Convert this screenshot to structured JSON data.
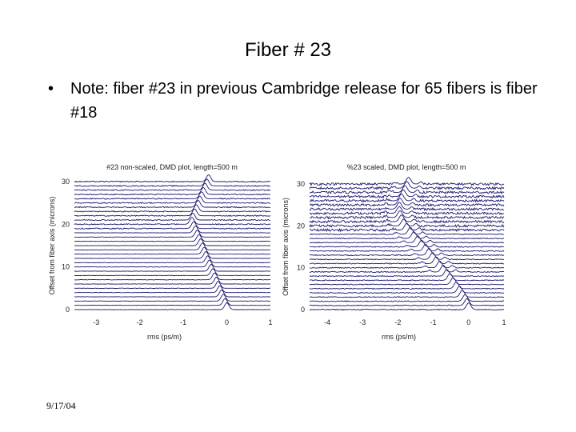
{
  "slide": {
    "title": "Fiber # 23",
    "bullet_symbol": "•",
    "bullet_text": "Note: fiber #23 in previous Cambridge release for 65 fibers is fiber #18",
    "footer_date": "9/17/04"
  },
  "chart_data": [
    {
      "type": "line",
      "title": "#23 non-scaled, DMD plot, length=500 m",
      "xlabel": "rms (ps/m)",
      "ylabel": "Offset from fiber axis (microns)",
      "xlim": [
        -3.5,
        1
      ],
      "ylim": [
        0,
        30
      ],
      "xticks": [
        "-3",
        "-2",
        "-1",
        "0",
        "1"
      ],
      "yticks": [
        "0",
        "10",
        "20",
        "30"
      ],
      "grid": false,
      "trace_offsets": [
        0,
        1,
        2,
        3,
        4,
        5,
        6,
        7,
        8,
        9,
        10,
        11,
        12,
        13,
        14,
        15,
        16,
        17,
        18,
        19,
        20,
        21,
        22,
        23,
        24,
        25,
        26,
        27,
        28,
        29,
        30
      ],
      "peak_delay_by_offset": [
        0.0,
        -0.04,
        -0.08,
        -0.12,
        -0.16,
        -0.2,
        -0.24,
        -0.28,
        -0.32,
        -0.36,
        -0.4,
        -0.44,
        -0.48,
        -0.52,
        -0.56,
        -0.6,
        -0.64,
        -0.68,
        -0.72,
        -0.76,
        -0.8,
        -0.78,
        -0.74,
        -0.7,
        -0.66,
        -0.62,
        -0.58,
        -0.54,
        -0.5,
        -0.46,
        -0.42
      ],
      "noise_level": "low"
    },
    {
      "type": "line",
      "title": "%23 scaled, DMD plot, length=500 m",
      "xlabel": "rms (ps/m)",
      "ylabel": "Offset from fiber axis (microns)",
      "xlim": [
        -4.5,
        1
      ],
      "ylim": [
        0,
        30
      ],
      "xticks": [
        "-4",
        "-3",
        "-2",
        "-1",
        "0",
        "1"
      ],
      "yticks": [
        "0",
        "10",
        "20",
        "30"
      ],
      "grid": false,
      "trace_offsets": [
        0,
        1,
        2,
        3,
        4,
        5,
        6,
        7,
        8,
        9,
        10,
        11,
        12,
        13,
        14,
        15,
        16,
        17,
        18,
        19,
        20,
        21,
        22,
        23,
        24,
        25,
        26,
        27,
        28,
        29,
        30
      ],
      "peak_delay_by_offset": [
        0.0,
        -0.05,
        -0.1,
        -0.18,
        -0.26,
        -0.35,
        -0.44,
        -0.53,
        -0.62,
        -0.72,
        -0.82,
        -0.92,
        -1.02,
        -1.12,
        -1.22,
        -1.33,
        -1.44,
        -1.55,
        -1.65,
        -1.75,
        -1.84,
        -1.9,
        -1.94,
        -1.96,
        -1.96,
        -1.94,
        -1.9,
        -1.85,
        -1.8,
        -1.75,
        -1.7
      ],
      "noise_level": "high"
    }
  ]
}
